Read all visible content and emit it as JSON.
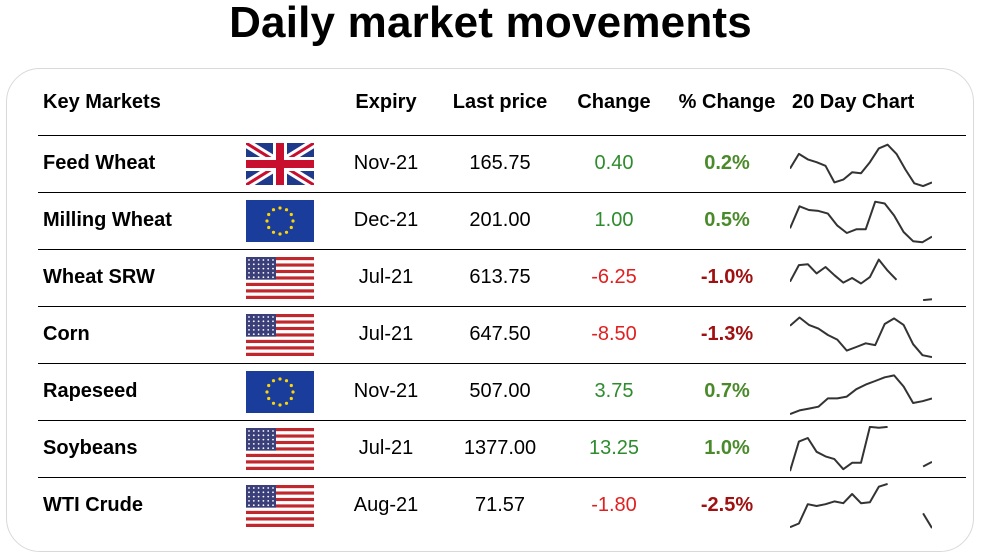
{
  "title": "Daily market movements",
  "headers": {
    "market": "Key Markets",
    "expiry": "Expiry",
    "last_price": "Last price",
    "change": "Change",
    "pct_change": "% Change",
    "chart": "20 Day Chart"
  },
  "colors": {
    "change_up": "#2e8b2e",
    "change_down": "#e02020",
    "pct_up": "#4a8a2a",
    "pct_down": "#a01010",
    "sparkline": "#333333"
  },
  "rows": [
    {
      "market": "Feed Wheat",
      "flag": "uk-flag",
      "expiry": "Nov-21",
      "last_price": "165.75",
      "change": "0.40",
      "pct_change": "0.2%",
      "direction": "up",
      "spark": [
        0.4,
        0.72,
        0.6,
        0.54,
        0.46,
        0.1,
        0.16,
        0.32,
        0.3,
        0.54,
        0.84,
        0.92,
        0.72,
        0.38,
        0.08,
        0.02,
        0.1
      ]
    },
    {
      "market": "Milling Wheat",
      "flag": "eu-flag",
      "expiry": "Dec-21",
      "last_price": "201.00",
      "change": "1.00",
      "pct_change": "0.5%",
      "direction": "up",
      "spark": [
        0.34,
        0.82,
        0.74,
        0.72,
        0.66,
        0.4,
        0.24,
        0.32,
        0.32,
        0.92,
        0.88,
        0.62,
        0.26,
        0.06,
        0.04,
        0.16
      ]
    },
    {
      "market": "Wheat SRW",
      "flag": "us-flag",
      "expiry": "Jul-21",
      "last_price": "613.75",
      "change": "-6.25",
      "pct_change": "-1.0%",
      "direction": "down",
      "spark": [
        0.42,
        0.78,
        0.8,
        0.6,
        0.74,
        0.56,
        0.4,
        0.5,
        0.38,
        0.52,
        0.9,
        0.66,
        0.46,
        null,
        null,
        0.02,
        0.04
      ]
    },
    {
      "market": "Corn",
      "flag": "us-flag",
      "expiry": "Jul-21",
      "last_price": "647.50",
      "change": "-8.50",
      "pct_change": "-1.3%",
      "direction": "down",
      "spark": [
        0.7,
        0.88,
        0.72,
        0.64,
        0.5,
        0.4,
        0.16,
        0.24,
        0.32,
        0.28,
        0.74,
        0.86,
        0.72,
        0.3,
        0.06,
        0.02
      ]
    },
    {
      "market": "Rapeseed",
      "flag": "eu-flag",
      "expiry": "Nov-21",
      "last_price": "507.00",
      "change": "3.75",
      "pct_change": "0.7%",
      "direction": "up",
      "spark": [
        0.02,
        0.1,
        0.14,
        0.18,
        0.36,
        0.36,
        0.4,
        0.56,
        0.66,
        0.74,
        0.82,
        0.86,
        0.62,
        0.26,
        0.3,
        0.36
      ]
    },
    {
      "market": "Soybeans",
      "flag": "us-flag",
      "expiry": "Jul-21",
      "last_price": "1377.00",
      "change": "13.25",
      "pct_change": "1.0%",
      "direction": "up",
      "spark": [
        0.02,
        0.66,
        0.74,
        0.44,
        0.34,
        0.28,
        0.06,
        0.2,
        0.2,
        0.98,
        0.96,
        0.98,
        null,
        null,
        null,
        0.12,
        0.22
      ]
    },
    {
      "market": "WTI Crude",
      "flag": "us-flag",
      "expiry": "Aug-21",
      "last_price": "71.57",
      "change": "-1.80",
      "pct_change": "-2.5%",
      "direction": "down",
      "spark": [
        0.04,
        0.12,
        0.54,
        0.5,
        0.54,
        0.6,
        0.56,
        0.76,
        0.56,
        0.58,
        0.92,
        0.98,
        null,
        null,
        null,
        0.34,
        0.02
      ]
    }
  ]
}
